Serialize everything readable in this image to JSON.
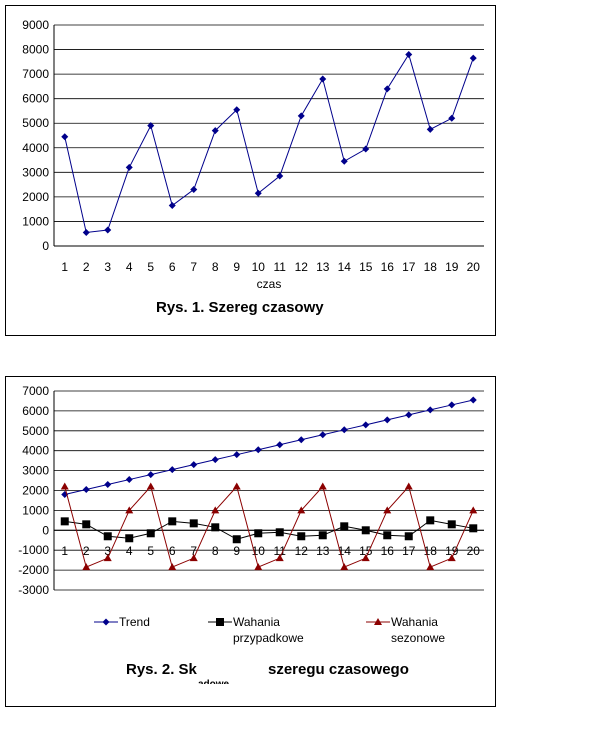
{
  "chart_data": [
    {
      "type": "line",
      "x": [
        1,
        2,
        3,
        4,
        5,
        6,
        7,
        8,
        9,
        10,
        11,
        12,
        13,
        14,
        15,
        16,
        17,
        18,
        19,
        20
      ],
      "series": [
        {
          "values": [
            4450,
            550,
            650,
            3200,
            4900,
            1650,
            2300,
            4700,
            5550,
            2150,
            2850,
            5300,
            6800,
            3450,
            3950,
            6400,
            7800,
            4750,
            5200,
            7650
          ],
          "color": "#00008b",
          "marker": "diamond"
        }
      ],
      "xlabel": "czas",
      "ylim": [
        0,
        9000
      ],
      "yticks": [
        "0",
        "1000",
        "2000",
        "3000",
        "4000",
        "5000",
        "6000",
        "7000",
        "8000",
        "9000"
      ],
      "xticks": [
        "1",
        "2",
        "3",
        "4",
        "5",
        "6",
        "7",
        "8",
        "9",
        "10",
        "11",
        "12",
        "13",
        "14",
        "15",
        "16",
        "17",
        "18",
        "19",
        "20"
      ],
      "grid": true,
      "caption": "Rys. 1.  Szereg czasowy"
    },
    {
      "type": "line",
      "x": [
        1,
        2,
        3,
        4,
        5,
        6,
        7,
        8,
        9,
        10,
        11,
        12,
        13,
        14,
        15,
        16,
        17,
        18,
        19,
        20
      ],
      "series": [
        {
          "name": "Trend",
          "values": [
            1800,
            2050,
            2300,
            2550,
            2800,
            3050,
            3300,
            3550,
            3800,
            4050,
            4300,
            4550,
            4800,
            5050,
            5300,
            5550,
            5800,
            6050,
            6300,
            6550
          ],
          "color": "#00008b",
          "marker": "diamond"
        },
        {
          "name": "Wahania przypadkowe",
          "values": [
            450,
            300,
            -300,
            -400,
            -150,
            450,
            350,
            150,
            -450,
            -150,
            -100,
            -300,
            -250,
            200,
            0,
            -250,
            -300,
            500,
            300,
            100
          ],
          "color": "#000000",
          "marker": "square"
        },
        {
          "name": "Wahania sezonowe",
          "values": [
            2200,
            -1850,
            -1400,
            1000,
            2200,
            -1850,
            -1400,
            1000,
            2200,
            -1850,
            -1400,
            1000,
            2200,
            -1850,
            -1400,
            1000,
            2200,
            -1850,
            -1400,
            1000
          ],
          "color": "#8b0000",
          "marker": "triangle"
        }
      ],
      "ylim": [
        -3000,
        7000
      ],
      "yticks": [
        "-3000",
        "-2000",
        "-1000",
        "0",
        "1000",
        "2000",
        "3000",
        "4000",
        "5000",
        "6000",
        "7000"
      ],
      "xticks": [
        "1",
        "2",
        "3",
        "4",
        "5",
        "6",
        "7",
        "8",
        "9",
        "10",
        "11",
        "12",
        "13",
        "14",
        "15",
        "16",
        "17",
        "18",
        "19",
        "20"
      ],
      "grid": true,
      "legend": "bottom",
      "caption_left": "Rys. 2. Sk",
      "caption_right": "szeregu czasowego",
      "caption_clipped": "adowe"
    }
  ]
}
